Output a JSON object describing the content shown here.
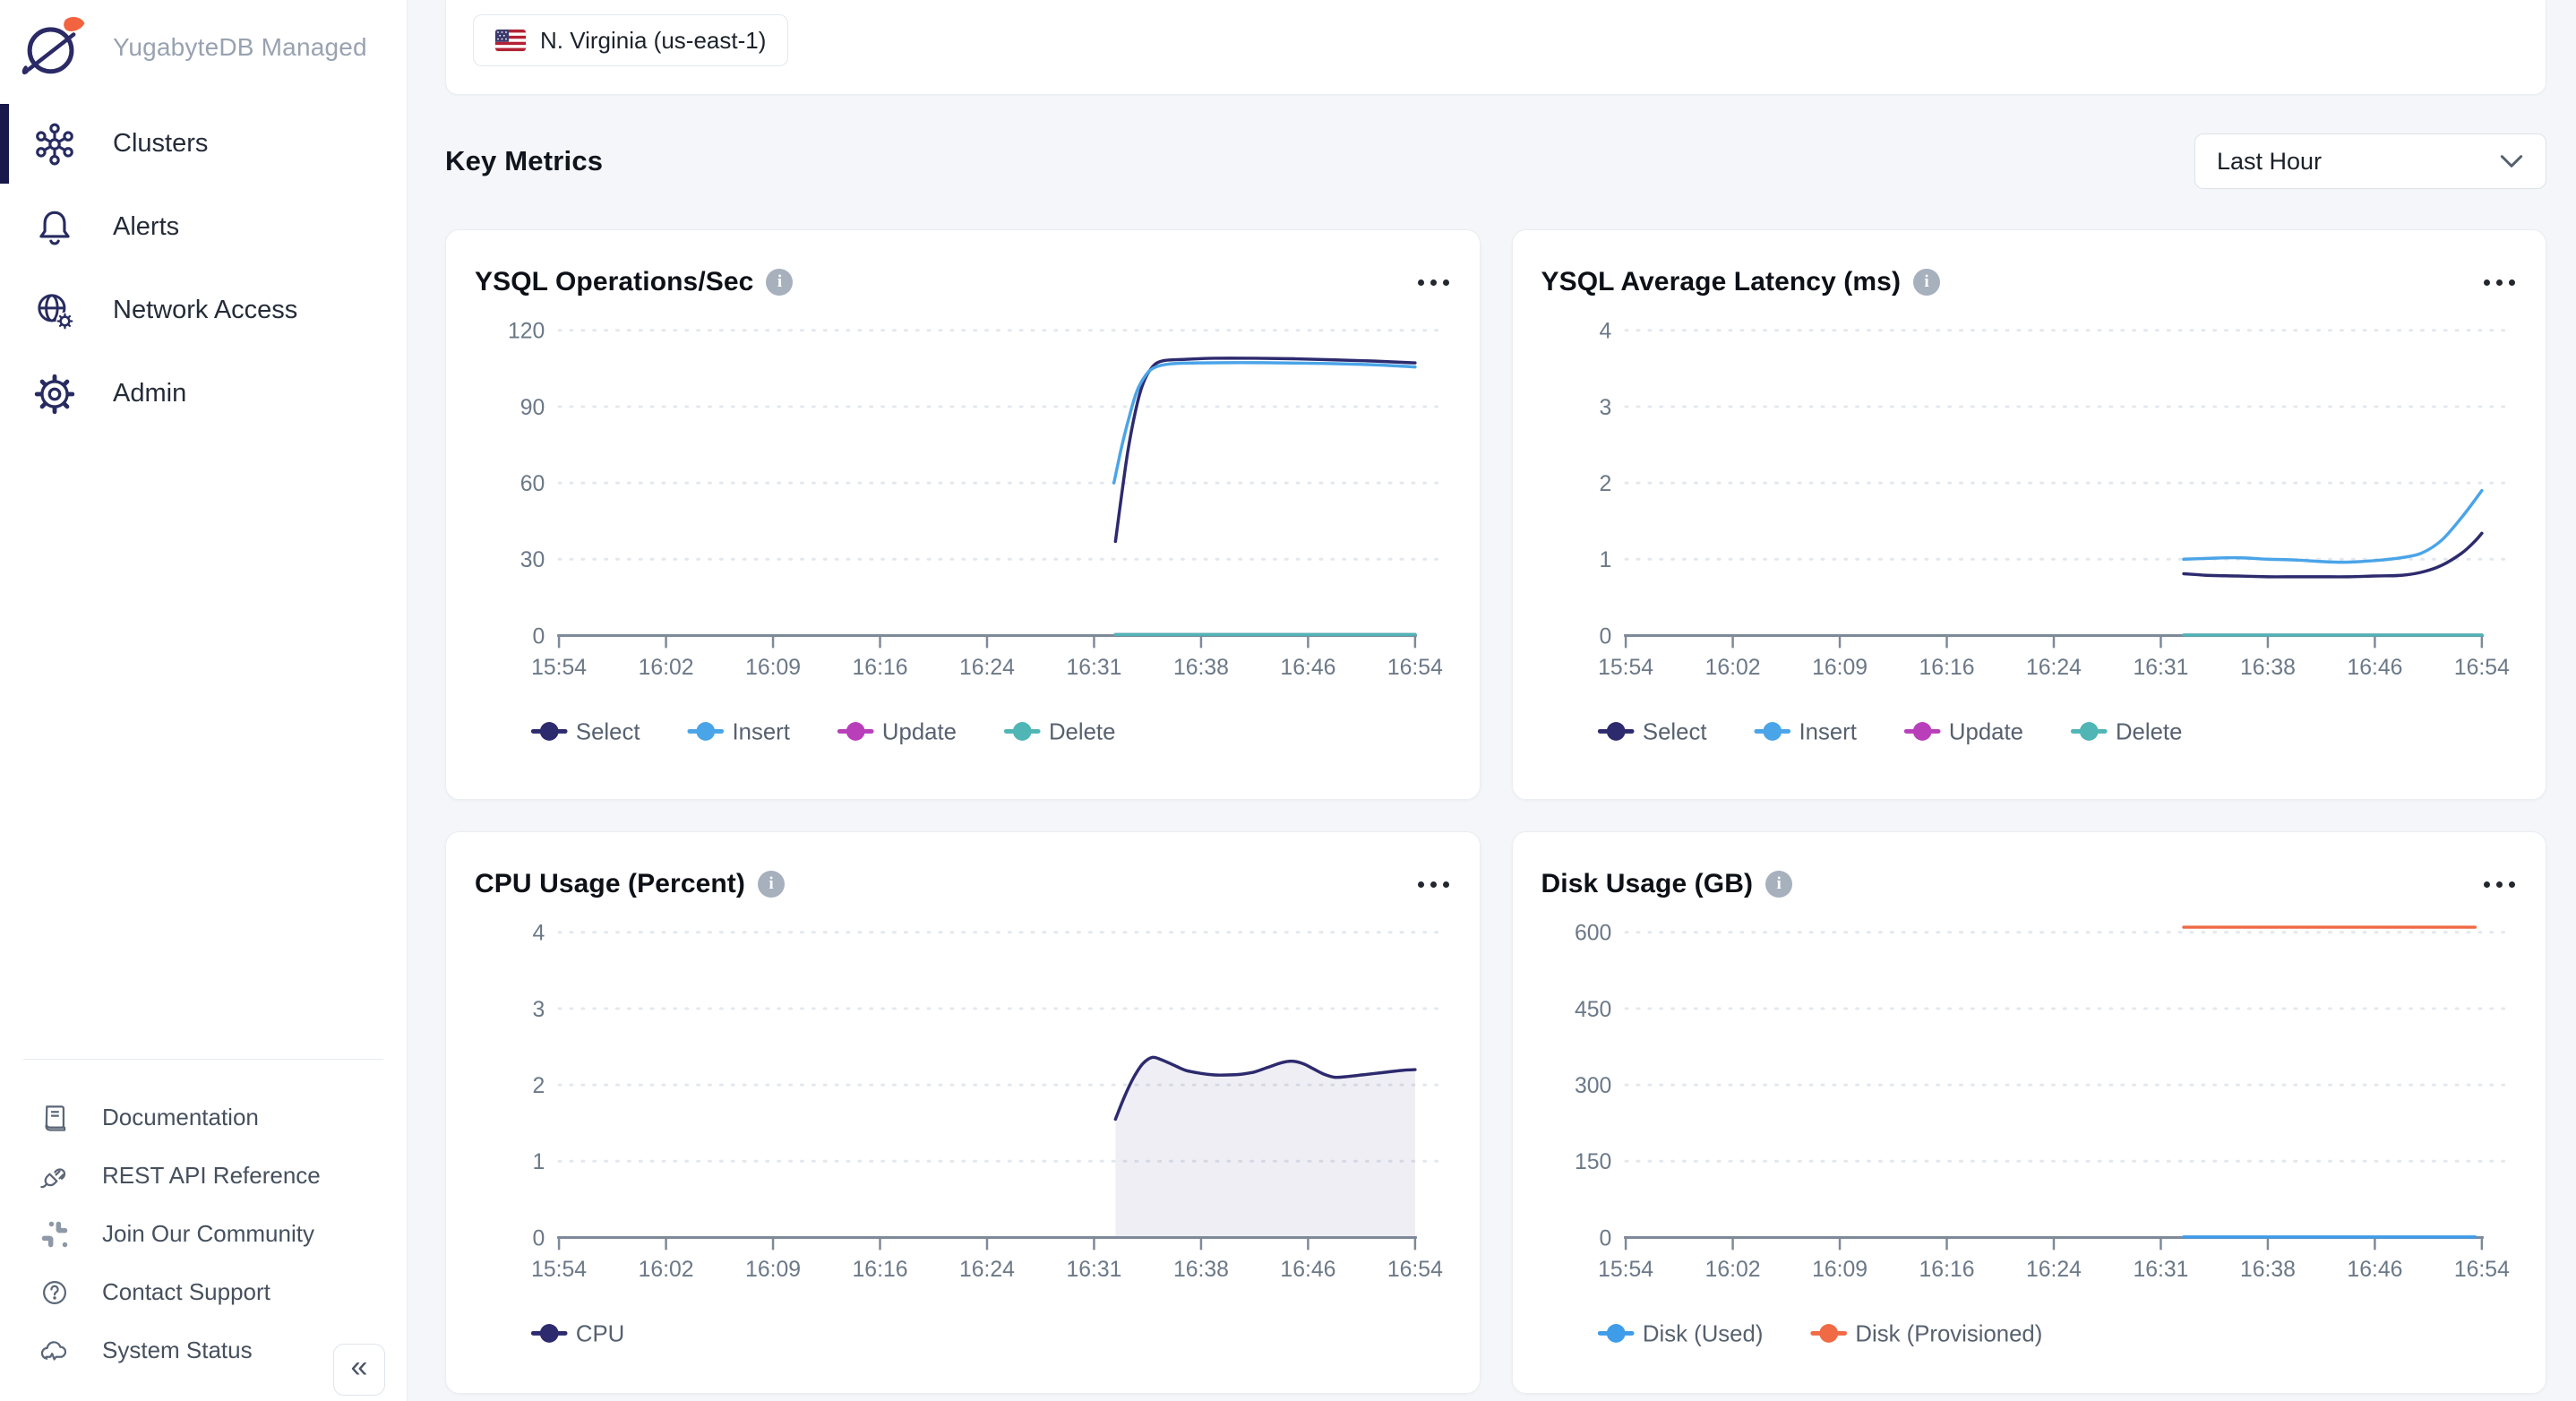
{
  "brand": {
    "name": "YugabyteDB Managed"
  },
  "sidebar": {
    "nav": [
      {
        "label": "Clusters",
        "icon": "clusters-icon",
        "active": true
      },
      {
        "label": "Alerts",
        "icon": "bell-icon",
        "active": false
      },
      {
        "label": "Network Access",
        "icon": "globe-gear-icon",
        "active": false
      },
      {
        "label": "Admin",
        "icon": "gear-icon",
        "active": false
      }
    ],
    "footer": [
      {
        "label": "Documentation",
        "icon": "book-icon"
      },
      {
        "label": "REST API Reference",
        "icon": "plug-icon"
      },
      {
        "label": "Join Our Community",
        "icon": "slack-icon"
      },
      {
        "label": "Contact Support",
        "icon": "question-icon"
      },
      {
        "label": "System Status",
        "icon": "cloud-status-icon"
      }
    ],
    "collapse_glyph": "«"
  },
  "topbar": {
    "region": "N. Virginia (us-east-1)",
    "flag": "us-flag-icon"
  },
  "header": {
    "title": "Key Metrics",
    "range_selector": "Last Hour"
  },
  "colors": {
    "select_navy": "#2d2a6e",
    "insert_blue": "#4aa4e8",
    "update_magenta": "#b93fba",
    "delete_teal": "#4fb5b5",
    "disk_used_blue": "#3f9ce8",
    "disk_provisioned_orange": "#ef6a45",
    "gridline": "#e3e8ee",
    "axis": "#7e8999",
    "tick_text": "#6b7887",
    "legend_text": "#57616f"
  },
  "chart_data": [
    {
      "type": "line",
      "title": "YSQL Operations/Sec",
      "x_ticks": [
        "15:54",
        "16:02",
        "16:09",
        "16:16",
        "16:24",
        "16:31",
        "16:38",
        "16:46",
        "16:54"
      ],
      "x_tick_minutes": [
        0,
        8,
        15,
        22,
        30,
        37,
        44,
        52,
        60
      ],
      "y_ticks": [
        0,
        30,
        60,
        90,
        120
      ],
      "ylim": [
        0,
        130
      ],
      "grid": "dotted-horizontal",
      "legend_position": "bottom-left",
      "series": [
        {
          "name": "Select",
          "color": "#2d2a6e",
          "points": [
            [
              38.4,
              37
            ],
            [
              38.8,
              55
            ],
            [
              39.2,
              72
            ],
            [
              39.7,
              88
            ],
            [
              40.2,
              99
            ],
            [
              40.8,
              105.5
            ],
            [
              41.5,
              108
            ],
            [
              43,
              108.6
            ],
            [
              45,
              109
            ],
            [
              48,
              109
            ],
            [
              51,
              108.8
            ],
            [
              54,
              108.4
            ],
            [
              57,
              107.9
            ],
            [
              60,
              107.2
            ]
          ]
        },
        {
          "name": "Insert",
          "color": "#4aa4e8",
          "points": [
            [
              38.3,
              60
            ],
            [
              38.8,
              74
            ],
            [
              39.3,
              86
            ],
            [
              39.8,
              96
            ],
            [
              40.4,
              102.5
            ],
            [
              41,
              105.5
            ],
            [
              42,
              106.8
            ],
            [
              44,
              107.2
            ],
            [
              47,
              107.3
            ],
            [
              50,
              107.2
            ],
            [
              53,
              107
            ],
            [
              56,
              106.6
            ],
            [
              58,
              106.2
            ],
            [
              60,
              105.6
            ]
          ]
        },
        {
          "name": "Update",
          "color": "#b93fba",
          "points": [
            [
              38.4,
              0.4
            ],
            [
              60,
              0.4
            ]
          ]
        },
        {
          "name": "Delete",
          "color": "#4fb5b5",
          "points": [
            [
              38.4,
              0.4
            ],
            [
              60,
              0.4
            ]
          ]
        }
      ]
    },
    {
      "type": "line",
      "title": "YSQL Average Latency (ms)",
      "x_ticks": [
        "15:54",
        "16:02",
        "16:09",
        "16:16",
        "16:24",
        "16:31",
        "16:38",
        "16:46",
        "16:54"
      ],
      "x_tick_minutes": [
        0,
        8,
        15,
        22,
        30,
        37,
        44,
        52,
        60
      ],
      "y_ticks": [
        0,
        1,
        2,
        3,
        4
      ],
      "ylim": [
        0,
        4.33
      ],
      "grid": "dotted-horizontal",
      "legend_position": "bottom-left",
      "series": [
        {
          "name": "Select",
          "color": "#2d2a6e",
          "points": [
            [
              38.5,
              0.81
            ],
            [
              40,
              0.79
            ],
            [
              42,
              0.78
            ],
            [
              44,
              0.77
            ],
            [
              46,
              0.77
            ],
            [
              48,
              0.77
            ],
            [
              50,
              0.77
            ],
            [
              52,
              0.78
            ],
            [
              54,
              0.79
            ],
            [
              55.5,
              0.83
            ],
            [
              57,
              0.92
            ],
            [
              58.5,
              1.08
            ],
            [
              59.5,
              1.24
            ],
            [
              60,
              1.34
            ]
          ]
        },
        {
          "name": "Insert",
          "color": "#4aa4e8",
          "points": [
            [
              38.5,
              1.0
            ],
            [
              40,
              1.01
            ],
            [
              42,
              1.02
            ],
            [
              44,
              1.0
            ],
            [
              46,
              0.99
            ],
            [
              48,
              0.97
            ],
            [
              49.5,
              0.96
            ],
            [
              51,
              0.97
            ],
            [
              52.5,
              0.99
            ],
            [
              54,
              1.02
            ],
            [
              55.5,
              1.08
            ],
            [
              57,
              1.25
            ],
            [
              58.5,
              1.55
            ],
            [
              59.5,
              1.78
            ],
            [
              60,
              1.9
            ]
          ]
        },
        {
          "name": "Update",
          "color": "#b93fba",
          "points": [
            [
              38.5,
              0.005
            ],
            [
              60,
              0.005
            ]
          ]
        },
        {
          "name": "Delete",
          "color": "#4fb5b5",
          "points": [
            [
              38.5,
              0.005
            ],
            [
              60,
              0.005
            ]
          ]
        }
      ]
    },
    {
      "type": "area",
      "title": "CPU Usage (Percent)",
      "x_ticks": [
        "15:54",
        "16:02",
        "16:09",
        "16:16",
        "16:24",
        "16:31",
        "16:38",
        "16:46",
        "16:54"
      ],
      "x_tick_minutes": [
        0,
        8,
        15,
        22,
        30,
        37,
        44,
        52,
        60
      ],
      "y_ticks": [
        0,
        1,
        2,
        3,
        4
      ],
      "ylim": [
        0,
        4.33
      ],
      "grid": "dotted-horizontal",
      "legend_position": "bottom-left",
      "series": [
        {
          "name": "CPU",
          "color": "#2d2a6e",
          "fill": true,
          "points": [
            [
              38.4,
              1.55
            ],
            [
              39,
              1.85
            ],
            [
              39.6,
              2.1
            ],
            [
              40.2,
              2.28
            ],
            [
              40.8,
              2.36
            ],
            [
              41.4,
              2.33
            ],
            [
              42.2,
              2.26
            ],
            [
              43,
              2.19
            ],
            [
              44,
              2.15
            ],
            [
              45,
              2.13
            ],
            [
              46,
              2.13
            ],
            [
              47,
              2.14
            ],
            [
              48,
              2.17
            ],
            [
              49,
              2.23
            ],
            [
              50,
              2.29
            ],
            [
              50.8,
              2.31
            ],
            [
              51.6,
              2.28
            ],
            [
              52.4,
              2.21
            ],
            [
              53.2,
              2.14
            ],
            [
              54,
              2.1
            ],
            [
              55,
              2.11
            ],
            [
              56,
              2.13
            ],
            [
              57,
              2.15
            ],
            [
              58,
              2.17
            ],
            [
              59,
              2.19
            ],
            [
              60,
              2.2
            ]
          ]
        }
      ]
    },
    {
      "type": "line",
      "title": "Disk Usage (GB)",
      "x_ticks": [
        "15:54",
        "16:02",
        "16:09",
        "16:16",
        "16:24",
        "16:31",
        "16:38",
        "16:46",
        "16:54"
      ],
      "x_tick_minutes": [
        0,
        8,
        15,
        22,
        30,
        37,
        44,
        52,
        60
      ],
      "y_ticks": [
        0,
        150,
        300,
        450,
        600
      ],
      "ylim": [
        0,
        650
      ],
      "grid": "dotted-horizontal",
      "legend_position": "bottom-left",
      "series": [
        {
          "name": "Disk (Used)",
          "color": "#3f9ce8",
          "points": [
            [
              38.5,
              1
            ],
            [
              59.5,
              1
            ]
          ]
        },
        {
          "name": "Disk (Provisioned)",
          "color": "#ef6a45",
          "points": [
            [
              38.5,
              610
            ],
            [
              59.5,
              610
            ]
          ]
        }
      ]
    }
  ]
}
